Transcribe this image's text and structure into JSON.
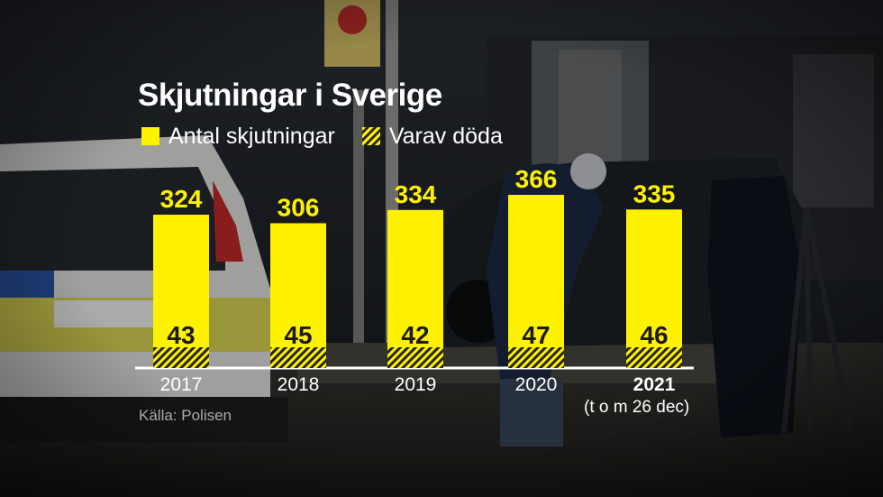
{
  "chart_data": {
    "type": "bar",
    "title": "Skjutningar i Sverige",
    "categories": [
      "2017",
      "2018",
      "2019",
      "2020",
      "2021"
    ],
    "highlight_category": "2021",
    "category_note": "(t o m 26 dec)",
    "series": [
      {
        "name": "Antal skjutningar",
        "values": [
          324,
          306,
          334,
          366,
          335
        ],
        "color": "#fff200",
        "style": "solid"
      },
      {
        "name": "Varav döda",
        "values": [
          43,
          45,
          42,
          47,
          46
        ],
        "color": "#fff200",
        "style": "hatched"
      }
    ],
    "value_labels": {
      "Antal skjutningar": [
        "324",
        "306",
        "334",
        "366",
        "335"
      ],
      "Varav döda": [
        "43",
        "45",
        "42",
        "47",
        "46"
      ]
    },
    "legend_position": "top-left",
    "grid": false,
    "ylim": [
      0,
      366
    ],
    "source": "Källa: Polisen"
  }
}
